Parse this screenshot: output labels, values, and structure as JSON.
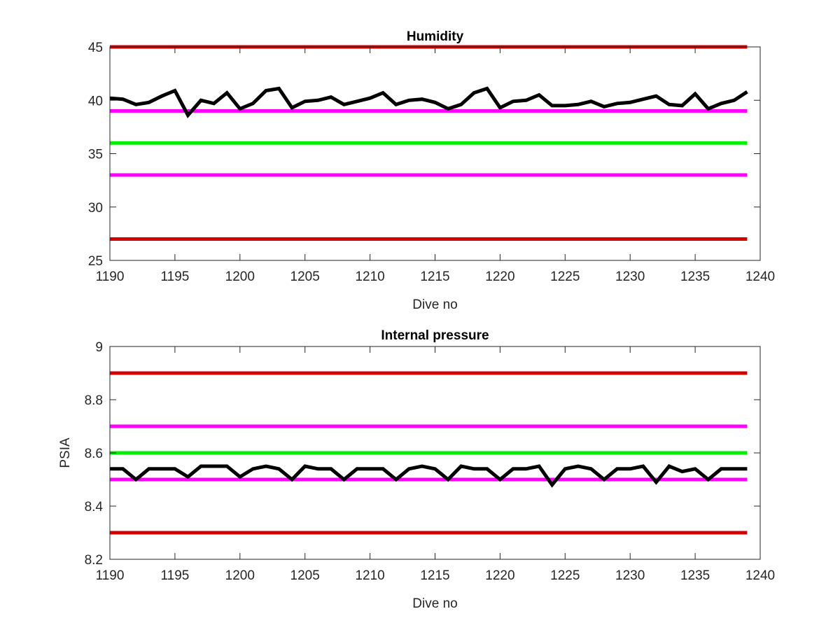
{
  "colors": {
    "series": "#000000",
    "limit_red": "#d40000",
    "limit_magenta": "#ff00ff",
    "target_green": "#00ee00",
    "axis": "#262626"
  },
  "chart_data": [
    {
      "type": "line",
      "title": "Humidity",
      "xlabel": "Dive no",
      "ylabel": "",
      "xlim": [
        1190,
        1240
      ],
      "ylim": [
        25,
        45
      ],
      "xticks": [
        "1190",
        "1195",
        "1200",
        "1205",
        "1210",
        "1215",
        "1220",
        "1225",
        "1230",
        "1235",
        "1240"
      ],
      "yticks": [
        "25",
        "30",
        "35",
        "40",
        "45"
      ],
      "grid": false,
      "series": [
        {
          "color": "#000000",
          "x": [
            1190,
            1191,
            1192,
            1193,
            1194,
            1195,
            1196,
            1197,
            1198,
            1199,
            1200,
            1201,
            1202,
            1203,
            1204,
            1205,
            1206,
            1207,
            1208,
            1209,
            1210,
            1211,
            1212,
            1213,
            1214,
            1215,
            1216,
            1217,
            1218,
            1219,
            1220,
            1221,
            1222,
            1223,
            1224,
            1225,
            1226,
            1227,
            1228,
            1229,
            1230,
            1231,
            1232,
            1233,
            1234,
            1235,
            1236,
            1237,
            1238,
            1239
          ],
          "y": [
            40.2,
            40.1,
            39.6,
            39.8,
            40.4,
            40.9,
            38.6,
            40.0,
            39.7,
            40.7,
            39.2,
            39.7,
            40.9,
            41.1,
            39.3,
            39.9,
            40.0,
            40.3,
            39.6,
            39.9,
            40.2,
            40.7,
            39.6,
            40.0,
            40.1,
            39.8,
            39.2,
            39.6,
            40.7,
            41.1,
            39.3,
            39.9,
            40.0,
            40.5,
            39.5,
            39.5,
            39.6,
            39.9,
            39.4,
            39.7,
            39.8,
            40.1,
            40.4,
            39.6,
            39.5,
            40.6,
            39.2,
            39.7,
            40.0,
            40.8
          ]
        }
      ],
      "hlines": [
        {
          "y": 45,
          "color": "#d40000"
        },
        {
          "y": 39,
          "color": "#ff00ff"
        },
        {
          "y": 36,
          "color": "#00ee00"
        },
        {
          "y": 33,
          "color": "#ff00ff"
        },
        {
          "y": 27,
          "color": "#d40000"
        }
      ],
      "hline_xrange": [
        1190,
        1239
      ]
    },
    {
      "type": "line",
      "title": "Internal pressure",
      "xlabel": "Dive no",
      "ylabel": "PSIA",
      "xlim": [
        1190,
        1240
      ],
      "ylim": [
        8.2,
        9
      ],
      "xticks": [
        "1190",
        "1195",
        "1200",
        "1205",
        "1210",
        "1215",
        "1220",
        "1225",
        "1230",
        "1235",
        "1240"
      ],
      "yticks": [
        "8.2",
        "8.4",
        "8.6",
        "8.8",
        "9"
      ],
      "grid": false,
      "series": [
        {
          "color": "#000000",
          "x": [
            1190,
            1191,
            1192,
            1193,
            1194,
            1195,
            1196,
            1197,
            1198,
            1199,
            1200,
            1201,
            1202,
            1203,
            1204,
            1205,
            1206,
            1207,
            1208,
            1209,
            1210,
            1211,
            1212,
            1213,
            1214,
            1215,
            1216,
            1217,
            1218,
            1219,
            1220,
            1221,
            1222,
            1223,
            1224,
            1225,
            1226,
            1227,
            1228,
            1229,
            1230,
            1231,
            1232,
            1233,
            1234,
            1235,
            1236,
            1237,
            1238,
            1239
          ],
          "y": [
            8.54,
            8.54,
            8.5,
            8.54,
            8.54,
            8.54,
            8.51,
            8.55,
            8.55,
            8.55,
            8.51,
            8.54,
            8.55,
            8.54,
            8.5,
            8.55,
            8.54,
            8.54,
            8.5,
            8.54,
            8.54,
            8.54,
            8.5,
            8.54,
            8.55,
            8.54,
            8.5,
            8.55,
            8.54,
            8.54,
            8.5,
            8.54,
            8.54,
            8.55,
            8.48,
            8.54,
            8.55,
            8.54,
            8.5,
            8.54,
            8.54,
            8.55,
            8.49,
            8.55,
            8.53,
            8.54,
            8.5,
            8.54,
            8.54,
            8.54
          ]
        }
      ],
      "hlines": [
        {
          "y": 8.9,
          "color": "#d40000"
        },
        {
          "y": 8.7,
          "color": "#ff00ff"
        },
        {
          "y": 8.6,
          "color": "#00ee00"
        },
        {
          "y": 8.5,
          "color": "#ff00ff"
        },
        {
          "y": 8.3,
          "color": "#d40000"
        }
      ],
      "hline_xrange": [
        1190,
        1239
      ]
    }
  ]
}
